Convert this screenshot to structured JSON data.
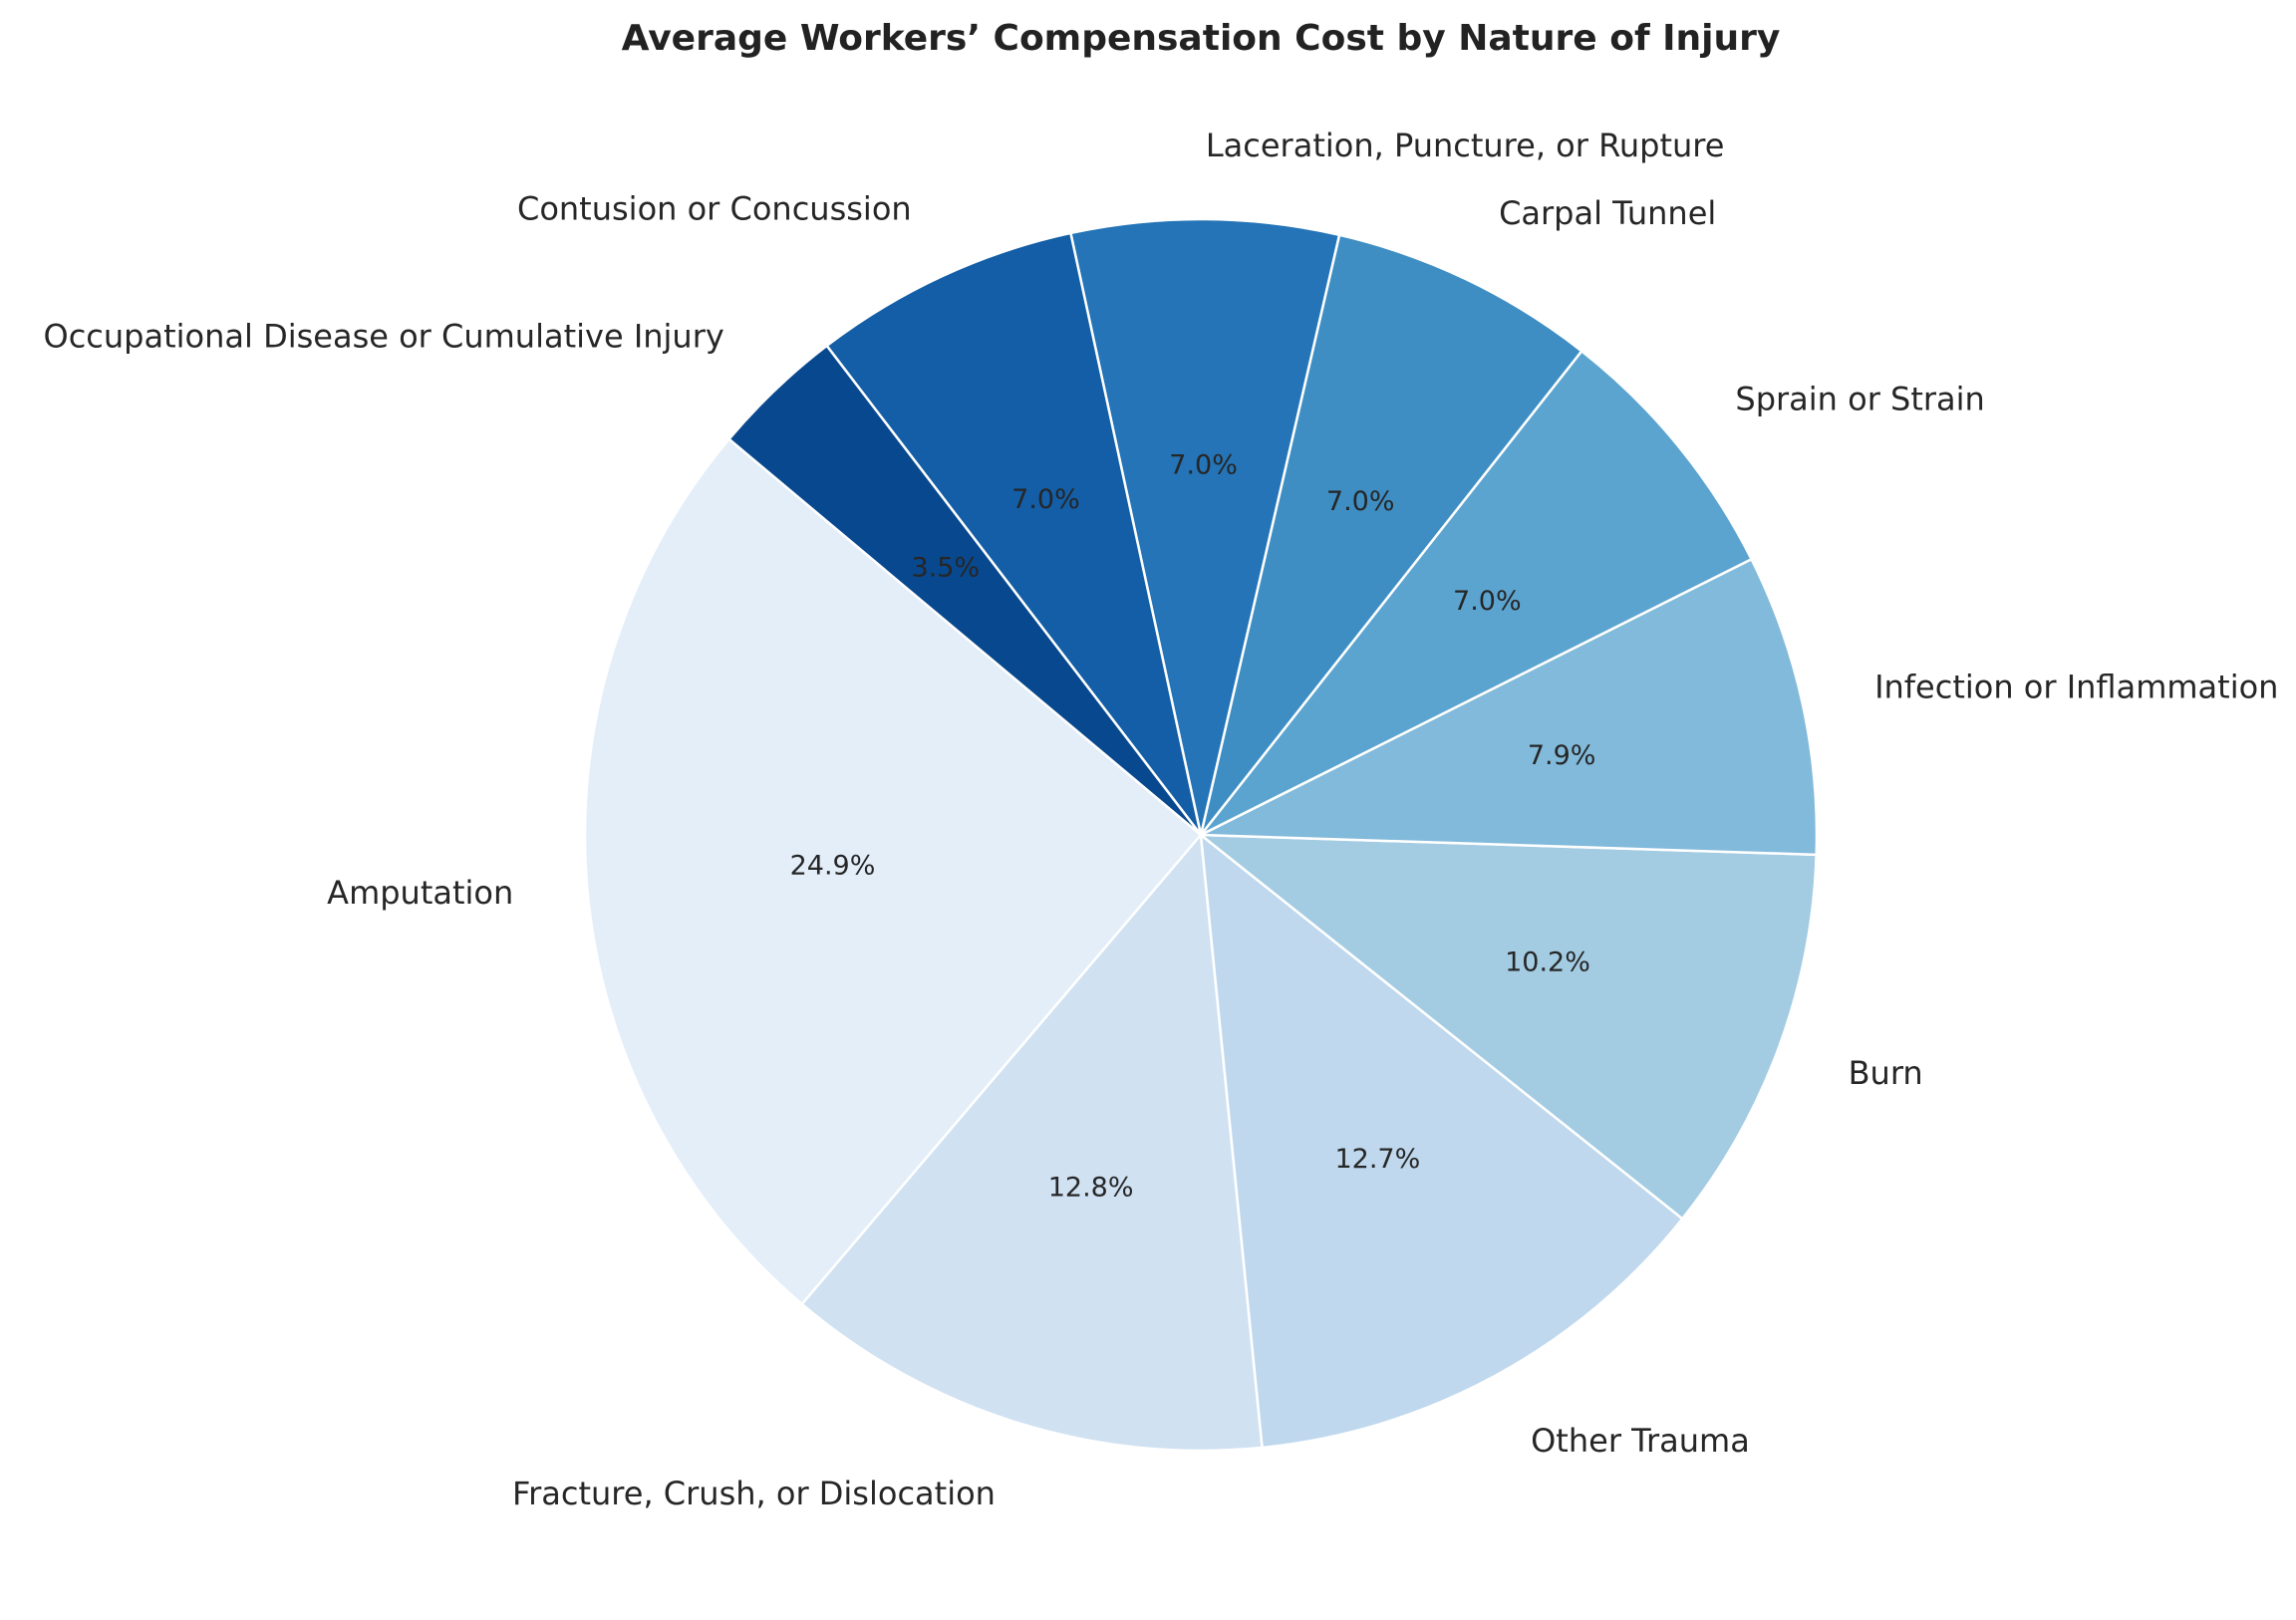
{
  "chart_data": {
    "type": "pie",
    "title": "Average Workers’ Compensation Cost by Nature of Injury",
    "start_angle_deg": 140,
    "direction": "counterclockwise",
    "edge_color": "#ffffff",
    "slices": [
      {
        "label": "Amputation",
        "value": 24.9,
        "pct_label": "24.9%",
        "color": "#e3eef9"
      },
      {
        "label": "Fracture, Crush, or Dislocation",
        "value": 12.8,
        "pct_label": "12.8%",
        "color": "#d0e1f2"
      },
      {
        "label": "Other Trauma",
        "value": 12.7,
        "pct_label": "12.7%",
        "color": "#bfd8ed"
      },
      {
        "label": "Burn",
        "value": 10.2,
        "pct_label": "10.2%",
        "color": "#a3cce3"
      },
      {
        "label": "Infection or Inflammation",
        "value": 7.9,
        "pct_label": "7.9%",
        "color": "#82badb"
      },
      {
        "label": "Sprain or Strain",
        "value": 7.0,
        "pct_label": "7.0%",
        "color": "#5ca4d0"
      },
      {
        "label": "Carpal Tunnel",
        "value": 7.0,
        "pct_label": "7.0%",
        "color": "#3e8ec4"
      },
      {
        "label": "Laceration, Puncture, or Rupture",
        "value": 7.0,
        "pct_label": "7.0%",
        "color": "#2474b7"
      },
      {
        "label": "Contusion or Concussion",
        "value": 7.0,
        "pct_label": "7.0%",
        "color": "#135ea6"
      },
      {
        "label": "Occupational Disease or Cumulative Injury",
        "value": 3.5,
        "pct_label": "3.5%",
        "color": "#08488e"
      }
    ]
  }
}
